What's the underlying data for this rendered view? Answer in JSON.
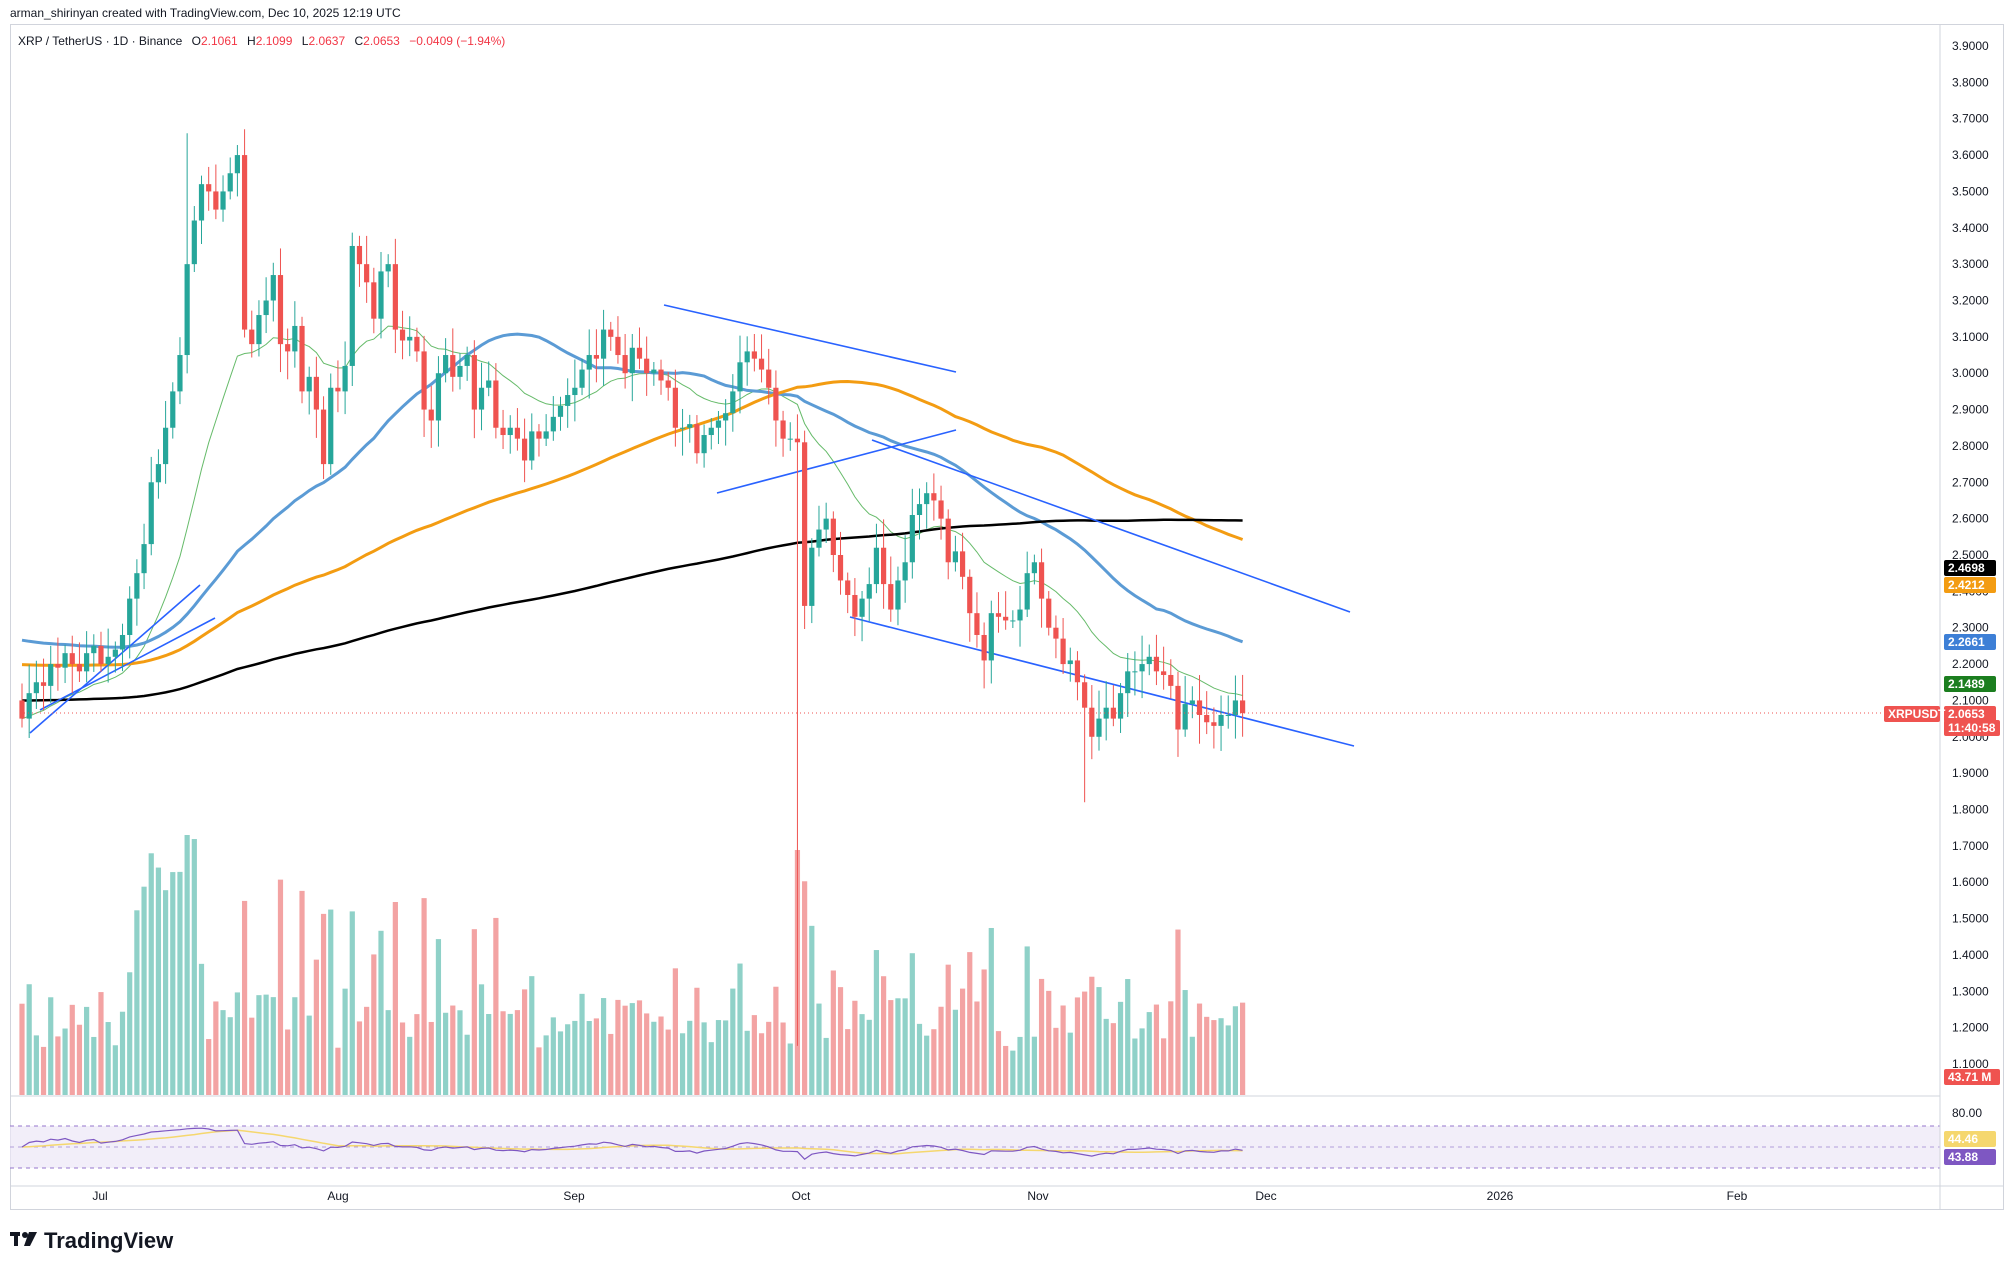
{
  "header": {
    "created_by": "arman_shirinyan created with TradingView.com, Dec 10, 2025 12:19 UTC"
  },
  "symbol": {
    "name": "XRP / TetherUS · 1D · Binance",
    "open_label": "O",
    "open": "2.1061",
    "high_label": "H",
    "high": "2.1099",
    "low_label": "L",
    "low": "2.0637",
    "close_label": "C",
    "close": "2.0653",
    "change": "−0.0409 (−1.94%)"
  },
  "price_axis": {
    "labels": [
      "3.9000",
      "3.8000",
      "3.7000",
      "3.6000",
      "3.5000",
      "3.4000",
      "3.3000",
      "3.2000",
      "3.1000",
      "3.0000",
      "2.9000",
      "2.8000",
      "2.7000",
      "2.6000",
      "2.5000",
      "2.4000",
      "2.3000",
      "2.2000",
      "2.1000",
      "2.0000",
      "1.9000",
      "1.8000",
      "1.7000",
      "1.6000",
      "1.5000",
      "1.4000",
      "1.3000",
      "1.2000",
      "1.1000"
    ]
  },
  "time_axis": {
    "labels": [
      "Jul",
      "Aug",
      "Sep",
      "Oct",
      "Nov",
      "Dec",
      "2026",
      "Feb"
    ]
  },
  "badges": {
    "sma200": "2.4698",
    "sma100": "2.4212",
    "sma50": "2.2661",
    "ema20": "2.1489",
    "ticker": "XRPUSDT",
    "last_price": "2.0653",
    "countdown": "11:40:58",
    "volume": "43.71 M",
    "rsi_level": "80.00",
    "rsi_ma": "44.46",
    "rsi": "43.88"
  },
  "colors": {
    "up": "#26a69a",
    "down": "#ef5350",
    "vol_up": "#8fd1c8",
    "vol_down": "#f3a3a3",
    "sma200": "#000000",
    "sma100": "#f39c12",
    "sma50": "#5b9bd5",
    "ema20": "#66bb6a",
    "trendline": "#2962ff",
    "rsi": "#7e57c2",
    "rsi_ma": "#f5d76e"
  },
  "brand": {
    "name": "TradingView",
    "icon": "tradingview-logo-icon"
  },
  "chart_data": {
    "type": "candlestick",
    "title": "XRP / TetherUS · 1D · Binance",
    "ylim": [
      1.75,
      3.9
    ],
    "grid": false,
    "x": [
      "2025-06-23",
      "2025-06-24",
      "2025-06-25",
      "2025-06-26",
      "2025-06-27",
      "2025-06-28",
      "2025-06-29",
      "2025-06-30",
      "2025-07-01",
      "2025-07-02",
      "2025-07-03",
      "2025-07-04",
      "2025-07-05",
      "2025-07-06",
      "2025-07-07",
      "2025-07-08",
      "2025-07-09",
      "2025-07-10",
      "2025-07-11",
      "2025-07-12",
      "2025-07-13",
      "2025-07-14",
      "2025-07-15",
      "2025-07-16",
      "2025-07-17",
      "2025-07-18",
      "2025-07-19",
      "2025-07-20",
      "2025-07-21",
      "2025-07-22",
      "2025-07-23",
      "2025-07-24",
      "2025-07-25",
      "2025-07-26",
      "2025-07-27",
      "2025-07-28",
      "2025-07-29",
      "2025-07-30",
      "2025-07-31",
      "2025-08-01",
      "2025-08-02",
      "2025-08-03",
      "2025-08-04",
      "2025-08-05",
      "2025-08-06",
      "2025-08-07",
      "2025-08-08",
      "2025-08-09",
      "2025-08-10",
      "2025-08-11",
      "2025-08-12",
      "2025-08-13",
      "2025-08-14",
      "2025-08-15",
      "2025-08-16",
      "2025-08-17",
      "2025-08-18",
      "2025-08-19",
      "2025-08-20",
      "2025-08-21",
      "2025-08-22",
      "2025-08-23",
      "2025-08-24",
      "2025-08-25",
      "2025-08-26",
      "2025-08-27",
      "2025-08-28",
      "2025-08-29",
      "2025-08-30",
      "2025-08-31",
      "2025-09-01",
      "2025-09-02",
      "2025-09-03",
      "2025-09-04",
      "2025-09-05",
      "2025-09-06",
      "2025-09-07",
      "2025-09-08",
      "2025-09-09",
      "2025-09-10",
      "2025-09-11",
      "2025-09-12",
      "2025-09-13",
      "2025-09-14",
      "2025-09-15",
      "2025-09-16",
      "2025-09-17",
      "2025-09-18",
      "2025-09-19",
      "2025-09-20",
      "2025-09-21",
      "2025-09-22",
      "2025-09-23",
      "2025-09-24",
      "2025-09-25",
      "2025-09-26",
      "2025-09-27",
      "2025-09-28",
      "2025-09-29",
      "2025-09-30",
      "2025-10-01",
      "2025-10-02",
      "2025-10-03",
      "2025-10-04",
      "2025-10-05",
      "2025-10-06",
      "2025-10-07",
      "2025-10-08",
      "2025-10-09",
      "2025-10-10",
      "2025-10-11",
      "2025-10-12",
      "2025-10-13",
      "2025-10-14",
      "2025-10-15",
      "2025-10-16",
      "2025-10-17",
      "2025-10-18",
      "2025-10-19",
      "2025-10-20",
      "2025-10-21",
      "2025-10-22",
      "2025-10-23",
      "2025-10-24",
      "2025-10-25",
      "2025-10-26",
      "2025-10-27",
      "2025-10-28",
      "2025-10-29",
      "2025-10-30",
      "2025-10-31",
      "2025-11-01",
      "2025-11-02",
      "2025-11-03",
      "2025-11-04",
      "2025-11-05",
      "2025-11-06",
      "2025-11-07",
      "2025-11-08",
      "2025-11-09",
      "2025-11-10",
      "2025-11-11",
      "2025-11-12",
      "2025-11-13",
      "2025-11-14",
      "2025-11-15",
      "2025-11-16",
      "2025-11-17",
      "2025-11-18",
      "2025-11-19",
      "2025-11-20",
      "2025-11-21",
      "2025-11-22",
      "2025-11-23",
      "2025-11-24",
      "2025-11-25",
      "2025-11-26",
      "2025-11-27",
      "2025-11-28",
      "2025-11-29",
      "2025-11-30",
      "2025-12-01",
      "2025-12-02",
      "2025-12-03",
      "2025-12-04",
      "2025-12-05",
      "2025-12-06",
      "2025-12-07",
      "2025-12-08",
      "2025-12-09",
      "2025-12-10"
    ],
    "close": [
      2.05,
      2.12,
      2.15,
      2.14,
      2.2,
      2.19,
      2.23,
      2.2,
      2.18,
      2.23,
      2.25,
      2.2,
      2.22,
      2.24,
      2.28,
      2.38,
      2.45,
      2.53,
      2.7,
      2.75,
      2.85,
      2.95,
      3.05,
      3.3,
      3.42,
      3.52,
      3.5,
      3.45,
      3.5,
      3.55,
      3.6,
      3.12,
      3.08,
      3.16,
      3.2,
      3.27,
      3.08,
      3.06,
      3.13,
      2.95,
      2.99,
      2.9,
      2.75,
      2.96,
      2.95,
      3.02,
      3.35,
      3.3,
      3.25,
      3.15,
      3.28,
      3.3,
      3.12,
      3.09,
      3.1,
      3.06,
      2.9,
      2.87,
      3.0,
      3.05,
      2.99,
      3.02,
      3.05,
      2.9,
      2.96,
      2.98,
      2.85,
      2.83,
      2.85,
      2.82,
      2.76,
      2.84,
      2.82,
      2.84,
      2.88,
      2.91,
      2.94,
      2.96,
      3.01,
      3.05,
      3.04,
      3.12,
      3.1,
      3.05,
      3.0,
      3.07,
      3.04,
      3.0,
      3.01,
      2.98,
      2.96,
      2.85,
      2.85,
      2.86,
      2.78,
      2.83,
      2.85,
      2.87,
      2.89,
      2.95,
      3.03,
      3.06,
      3.04,
      3.01,
      2.96,
      2.87,
      2.82,
      2.82,
      2.81,
      2.36,
      2.52,
      2.57,
      2.6,
      2.5,
      2.43,
      2.39,
      2.33,
      2.38,
      2.42,
      2.52,
      2.42,
      2.35,
      2.43,
      2.48,
      2.61,
      2.64,
      2.67,
      2.65,
      2.6,
      2.48,
      2.51,
      2.44,
      2.34,
      2.28,
      2.21,
      2.34,
      2.33,
      2.32,
      2.32,
      2.35,
      2.45,
      2.48,
      2.38,
      2.3,
      2.27,
      2.2,
      2.21,
      2.15,
      2.08,
      2.0,
      2.05,
      2.08,
      2.05,
      2.12,
      2.18,
      2.18,
      2.2,
      2.22,
      2.18,
      2.17,
      2.14,
      2.02,
      2.09,
      2.1,
      2.06,
      2.04,
      2.03,
      2.06,
      2.06,
      2.1,
      2.065
    ],
    "volume_scale": "relative",
    "indicators": {
      "sma_200": {
        "last": 2.4698
      },
      "sma_100": {
        "last": 2.4212
      },
      "sma_50": {
        "last": 2.2661
      },
      "ema_20": {
        "last": 2.1489
      }
    },
    "rsi": {
      "value": 43.88,
      "ma": 44.46,
      "levels": [
        80
      ]
    }
  }
}
